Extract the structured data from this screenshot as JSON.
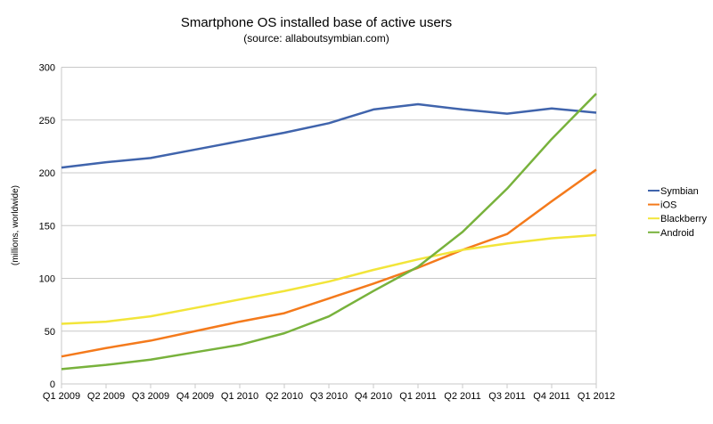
{
  "chart_data": {
    "type": "line",
    "title": "Smartphone OS installed base of active users",
    "subtitle": "(source: allaboutsymbian.com)",
    "xlabel": "",
    "ylabel": "(millions, worldwide)",
    "ylim": [
      0,
      300
    ],
    "yticks": [
      0,
      50,
      100,
      150,
      200,
      250,
      300
    ],
    "grid": true,
    "legend_position": "right",
    "categories": [
      "Q1 2009",
      "Q2 2009",
      "Q3 2009",
      "Q4 2009",
      "Q1 2010",
      "Q2 2010",
      "Q3 2010",
      "Q4 2010",
      "Q1 2011",
      "Q2 2011",
      "Q3 2011",
      "Q4 2011",
      "Q1 2012"
    ],
    "series": [
      {
        "name": "Symbian",
        "color": "#4064ac",
        "values": [
          205,
          210,
          214,
          222,
          230,
          238,
          247,
          260,
          265,
          260,
          256,
          261,
          257
        ]
      },
      {
        "name": "iOS",
        "color": "#f47a1c",
        "values": [
          26,
          34,
          41,
          50,
          59,
          67,
          81,
          95,
          110,
          127,
          142,
          173,
          203
        ]
      },
      {
        "name": "Blackberry",
        "color": "#f2e53a",
        "values": [
          57,
          59,
          64,
          72,
          80,
          88,
          97,
          108,
          118,
          127,
          133,
          138,
          141
        ]
      },
      {
        "name": "Android",
        "color": "#78b23c",
        "values": [
          14,
          18,
          23,
          30,
          37,
          48,
          64,
          88,
          111,
          144,
          185,
          232,
          275
        ]
      }
    ]
  }
}
